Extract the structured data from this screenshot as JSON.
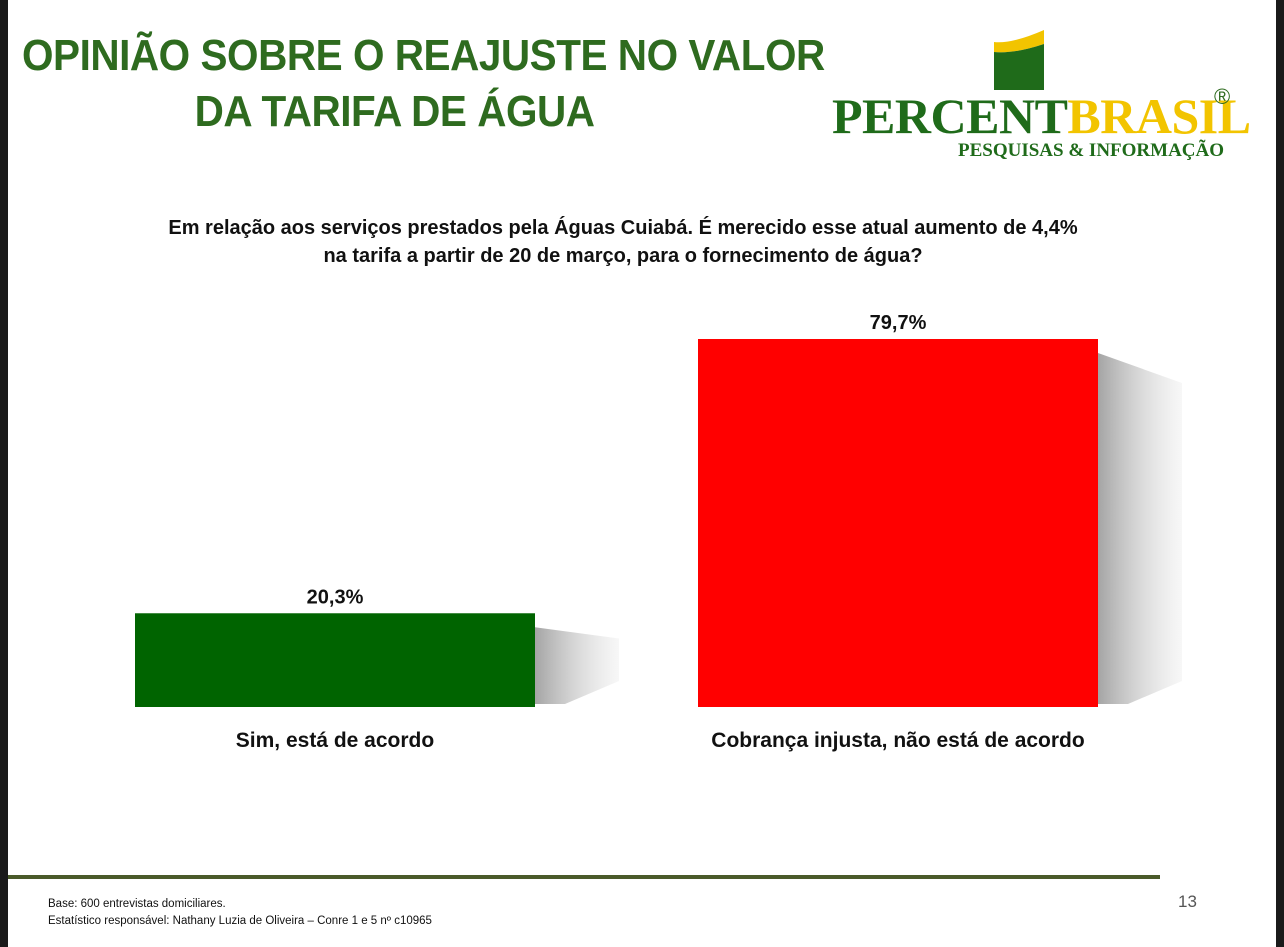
{
  "title": {
    "line1": "OPINIÃO SOBRE O REAJUSTE NO VALOR",
    "line2": "DA TARIFA DE ÁGUA"
  },
  "logo": {
    "word1": "PERCENT",
    "word2": "BRASIL",
    "registered": "®",
    "subtitle": "PESQUISAS & INFORMAÇÃO",
    "colors": {
      "green": "#1f6b1a",
      "yellow": "#f2c400"
    }
  },
  "question": {
    "line1": "Em relação aos serviços prestados pela Águas Cuiabá. É merecido esse atual aumento de 4,4%",
    "line2": "na tarifa a partir de 20 de março, para o fornecimento de água?"
  },
  "chart_data": {
    "type": "bar",
    "categories": [
      "Sim, está de acordo",
      "Cobrança injusta, não está de acordo"
    ],
    "values": [
      20.3,
      79.7
    ],
    "data_labels": [
      "20,3%",
      "79,7%"
    ],
    "colors": [
      "#006400",
      "#ff0000"
    ],
    "title": "",
    "xlabel": "",
    "ylabel": "",
    "ylim": [
      0,
      79.7
    ],
    "grid": false,
    "legend": "none"
  },
  "footer": {
    "base": "Base: 600 entrevistas domiciliares.",
    "statistician": "Estatístico responsável: Nathany Luzia de Oliveira – Conre 1 e 5 nº c10965",
    "page_number": "13"
  }
}
